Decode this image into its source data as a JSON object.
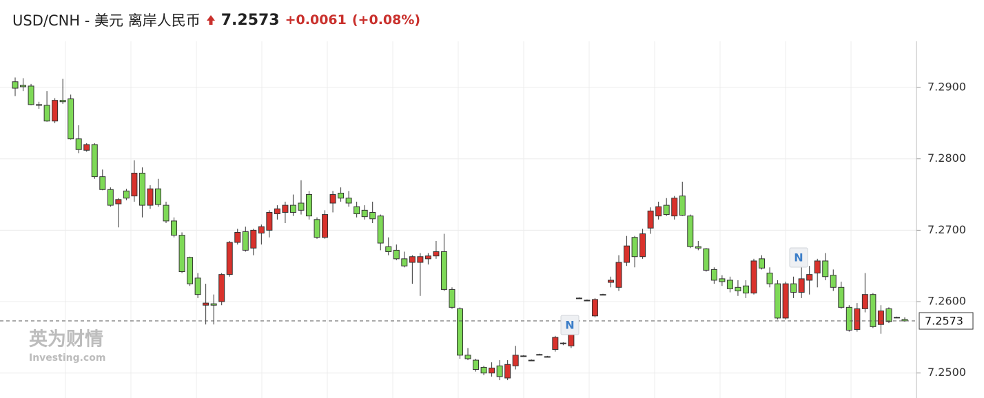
{
  "header": {
    "title": "USD/CNH - 美元 离岸人民币",
    "change": "+0.0061",
    "change_pct": "(+0.08%)"
  },
  "watermark": {
    "brand_cn": "英为财情",
    "brand_en": "Investing.com"
  },
  "chart_data": {
    "type": "candlestick",
    "up_color": "#d9322c",
    "down_color": "#7ed957",
    "grid": true,
    "last_price": 7.2573,
    "news_markers": [
      "N",
      "N"
    ],
    "ylim": [
      7.2465,
      7.2955
    ],
    "yticks": [
      {
        "value": 7.25,
        "label": "7.2500"
      },
      {
        "value": 7.26,
        "label": "7.2600"
      },
      {
        "value": 7.27,
        "label": "7.2700"
      },
      {
        "value": 7.28,
        "label": "7.2800"
      },
      {
        "value": 7.29,
        "label": "7.2900"
      }
    ],
    "ohlc": [
      [
        7.2908,
        7.2914,
        7.2888,
        7.2899
      ],
      [
        7.2903,
        7.2913,
        7.2895,
        7.2901
      ],
      [
        7.2902,
        7.2905,
        7.2875,
        7.2876
      ],
      [
        7.2876,
        7.288,
        7.287,
        7.2875
      ],
      [
        7.2875,
        7.2895,
        7.2852,
        7.2853
      ],
      [
        7.2853,
        7.2885,
        7.285,
        7.2882
      ],
      [
        7.2882,
        7.2912,
        7.2877,
        7.288
      ],
      [
        7.2884,
        7.289,
        7.2827,
        7.2828
      ],
      [
        7.2828,
        7.2847,
        7.2808,
        7.2813
      ],
      [
        7.2812,
        7.2822,
        7.281,
        7.282
      ],
      [
        7.282,
        7.2822,
        7.2772,
        7.2775
      ],
      [
        7.2775,
        7.2785,
        7.2756,
        7.2757
      ],
      [
        7.2757,
        7.276,
        7.2733,
        7.2735
      ],
      [
        7.2737,
        7.2745,
        7.2704,
        7.2743
      ],
      [
        7.2755,
        7.2758,
        7.2742,
        7.2745
      ],
      [
        7.2748,
        7.2798,
        7.274,
        7.278
      ],
      [
        7.278,
        7.2788,
        7.2718,
        7.2735
      ],
      [
        7.2735,
        7.2763,
        7.273,
        7.2758
      ],
      [
        7.2758,
        7.2772,
        7.2733,
        7.2736
      ],
      [
        7.2735,
        7.274,
        7.271,
        7.2713
      ],
      [
        7.2713,
        7.2718,
        7.269,
        7.2693
      ],
      [
        7.2693,
        7.2697,
        7.264,
        7.2642
      ],
      [
        7.2662,
        7.2663,
        7.2622,
        7.2625
      ],
      [
        7.2633,
        7.264,
        7.2605,
        7.261
      ],
      [
        7.2595,
        7.2625,
        7.2568,
        7.2598
      ],
      [
        7.2597,
        7.261,
        7.2568,
        7.2595
      ],
      [
        7.26,
        7.264,
        7.2595,
        7.2638
      ],
      [
        7.2638,
        7.2685,
        7.2635,
        7.2683
      ],
      [
        7.2683,
        7.2702,
        7.268,
        7.2697
      ],
      [
        7.2698,
        7.2705,
        7.267,
        7.2672
      ],
      [
        7.2675,
        7.2702,
        7.2665,
        7.27
      ],
      [
        7.2696,
        7.2708,
        7.268,
        7.2705
      ],
      [
        7.27,
        7.2728,
        7.269,
        7.2725
      ],
      [
        7.2723,
        7.2735,
        7.2715,
        7.273
      ],
      [
        7.2725,
        7.274,
        7.271,
        7.2735
      ],
      [
        7.2735,
        7.275,
        7.272,
        7.2725
      ],
      [
        7.2738,
        7.277,
        7.2722,
        7.2728
      ],
      [
        7.275,
        7.2755,
        7.2715,
        7.272
      ],
      [
        7.2715,
        7.2718,
        7.2688,
        7.269
      ],
      [
        7.269,
        7.2728,
        7.2688,
        7.2722
      ],
      [
        7.2738,
        7.2755,
        7.2725,
        7.275
      ],
      [
        7.2752,
        7.276,
        7.274,
        7.2745
      ],
      [
        7.2745,
        7.2755,
        7.2733,
        7.2738
      ],
      [
        7.2733,
        7.274,
        7.2718,
        7.2723
      ],
      [
        7.2728,
        7.2735,
        7.2715,
        7.2719
      ],
      [
        7.2725,
        7.274,
        7.271,
        7.2716
      ],
      [
        7.272,
        7.2722,
        7.2672,
        7.2682
      ],
      [
        7.2677,
        7.269,
        7.2665,
        7.267
      ],
      [
        7.2672,
        7.268,
        7.2658,
        7.266
      ],
      [
        7.266,
        7.267,
        7.2648,
        7.265
      ],
      [
        7.2655,
        7.2665,
        7.2625,
        7.2663
      ],
      [
        7.2655,
        7.2668,
        7.2608,
        7.2663
      ],
      [
        7.266,
        7.2668,
        7.2652,
        7.2664
      ],
      [
        7.2664,
        7.2685,
        7.266,
        7.267
      ],
      [
        7.267,
        7.2695,
        7.2615,
        7.2617
      ],
      [
        7.2617,
        7.262,
        7.259,
        7.2592
      ],
      [
        7.259,
        7.2592,
        7.252,
        7.2525
      ],
      [
        7.2525,
        7.2535,
        7.2518,
        7.252
      ],
      [
        7.2518,
        7.252,
        7.2502,
        7.2505
      ],
      [
        7.2508,
        7.251,
        7.2497,
        7.25
      ],
      [
        7.25,
        7.2515,
        7.2495,
        7.2507
      ],
      [
        7.251,
        7.2518,
        7.249,
        7.2495
      ],
      [
        7.2493,
        7.2518,
        7.249,
        7.2512
      ],
      [
        7.251,
        7.2538,
        7.2505,
        7.2525
      ],
      [
        7.2524,
        7.2525,
        7.2523,
        7.2524
      ],
      [
        7.2518,
        7.2519,
        7.2517,
        7.2518
      ],
      [
        7.2526,
        7.2527,
        7.2525,
        7.2526
      ],
      [
        7.2523,
        7.2524,
        7.2522,
        7.2523
      ],
      [
        7.2533,
        7.2552,
        7.253,
        7.255
      ],
      [
        7.2541,
        7.2543,
        7.2539,
        7.2542
      ],
      [
        7.2538,
        7.256,
        7.2535,
        7.2555
      ],
      [
        7.2605,
        7.2606,
        7.2604,
        7.2605
      ],
      [
        7.2602,
        7.2603,
        7.2601,
        7.2602
      ],
      [
        7.258,
        7.2605,
        7.2578,
        7.2603
      ],
      [
        7.261,
        7.2611,
        7.2609,
        7.261
      ],
      [
        7.2627,
        7.2635,
        7.262,
        7.263
      ],
      [
        7.262,
        7.2665,
        7.2615,
        7.2655
      ],
      [
        7.2655,
        7.2692,
        7.265,
        7.2678
      ],
      [
        7.269,
        7.2692,
        7.2648,
        7.2663
      ],
      [
        7.2663,
        7.2702,
        7.266,
        7.2695
      ],
      [
        7.2703,
        7.2732,
        7.2695,
        7.2727
      ],
      [
        7.272,
        7.274,
        7.2715,
        7.2733
      ],
      [
        7.2735,
        7.2745,
        7.272,
        7.2722
      ],
      [
        7.272,
        7.2748,
        7.2715,
        7.2745
      ],
      [
        7.2748,
        7.2768,
        7.272,
        7.2721
      ],
      [
        7.272,
        7.2722,
        7.2675,
        7.2677
      ],
      [
        7.2677,
        7.2685,
        7.2672,
        7.2675
      ],
      [
        7.2674,
        7.2675,
        7.2642,
        7.2644
      ],
      [
        7.2645,
        7.2648,
        7.2625,
        7.263
      ],
      [
        7.2632,
        7.2637,
        7.2622,
        7.2628
      ],
      [
        7.263,
        7.2635,
        7.2613,
        7.2618
      ],
      [
        7.262,
        7.263,
        7.2608,
        7.2615
      ],
      [
        7.2622,
        7.263,
        7.2605,
        7.2612
      ],
      [
        7.2612,
        7.266,
        7.261,
        7.2657
      ],
      [
        7.266,
        7.2665,
        7.2645,
        7.2647
      ],
      [
        7.264,
        7.2648,
        7.262,
        7.2625
      ],
      [
        7.2625,
        7.263,
        7.2575,
        7.2577
      ],
      [
        7.2577,
        7.2628,
        7.2575,
        7.2625
      ],
      [
        7.2625,
        7.2635,
        7.2605,
        7.2613
      ],
      [
        7.2613,
        7.2648,
        7.2605,
        7.2632
      ],
      [
        7.263,
        7.265,
        7.261,
        7.2638
      ],
      [
        7.264,
        7.266,
        7.262,
        7.2657
      ],
      [
        7.2657,
        7.2668,
        7.263,
        7.2635
      ],
      [
        7.2637,
        7.2645,
        7.2615,
        7.262
      ],
      [
        7.262,
        7.2628,
        7.259,
        7.2592
      ],
      [
        7.2592,
        7.2595,
        7.2558,
        7.256
      ],
      [
        7.2561,
        7.2598,
        7.2558,
        7.259
      ],
      [
        7.259,
        7.264,
        7.2585,
        7.261
      ],
      [
        7.261,
        7.2612,
        7.2563,
        7.2565
      ],
      [
        7.2568,
        7.2595,
        7.2555,
        7.2587
      ],
      [
        7.259,
        7.2592,
        7.257,
        7.2572
      ],
      [
        7.2578,
        7.2579,
        7.2577,
        7.2578
      ],
      [
        7.2575,
        7.2578,
        7.2572,
        7.2573
      ]
    ]
  }
}
